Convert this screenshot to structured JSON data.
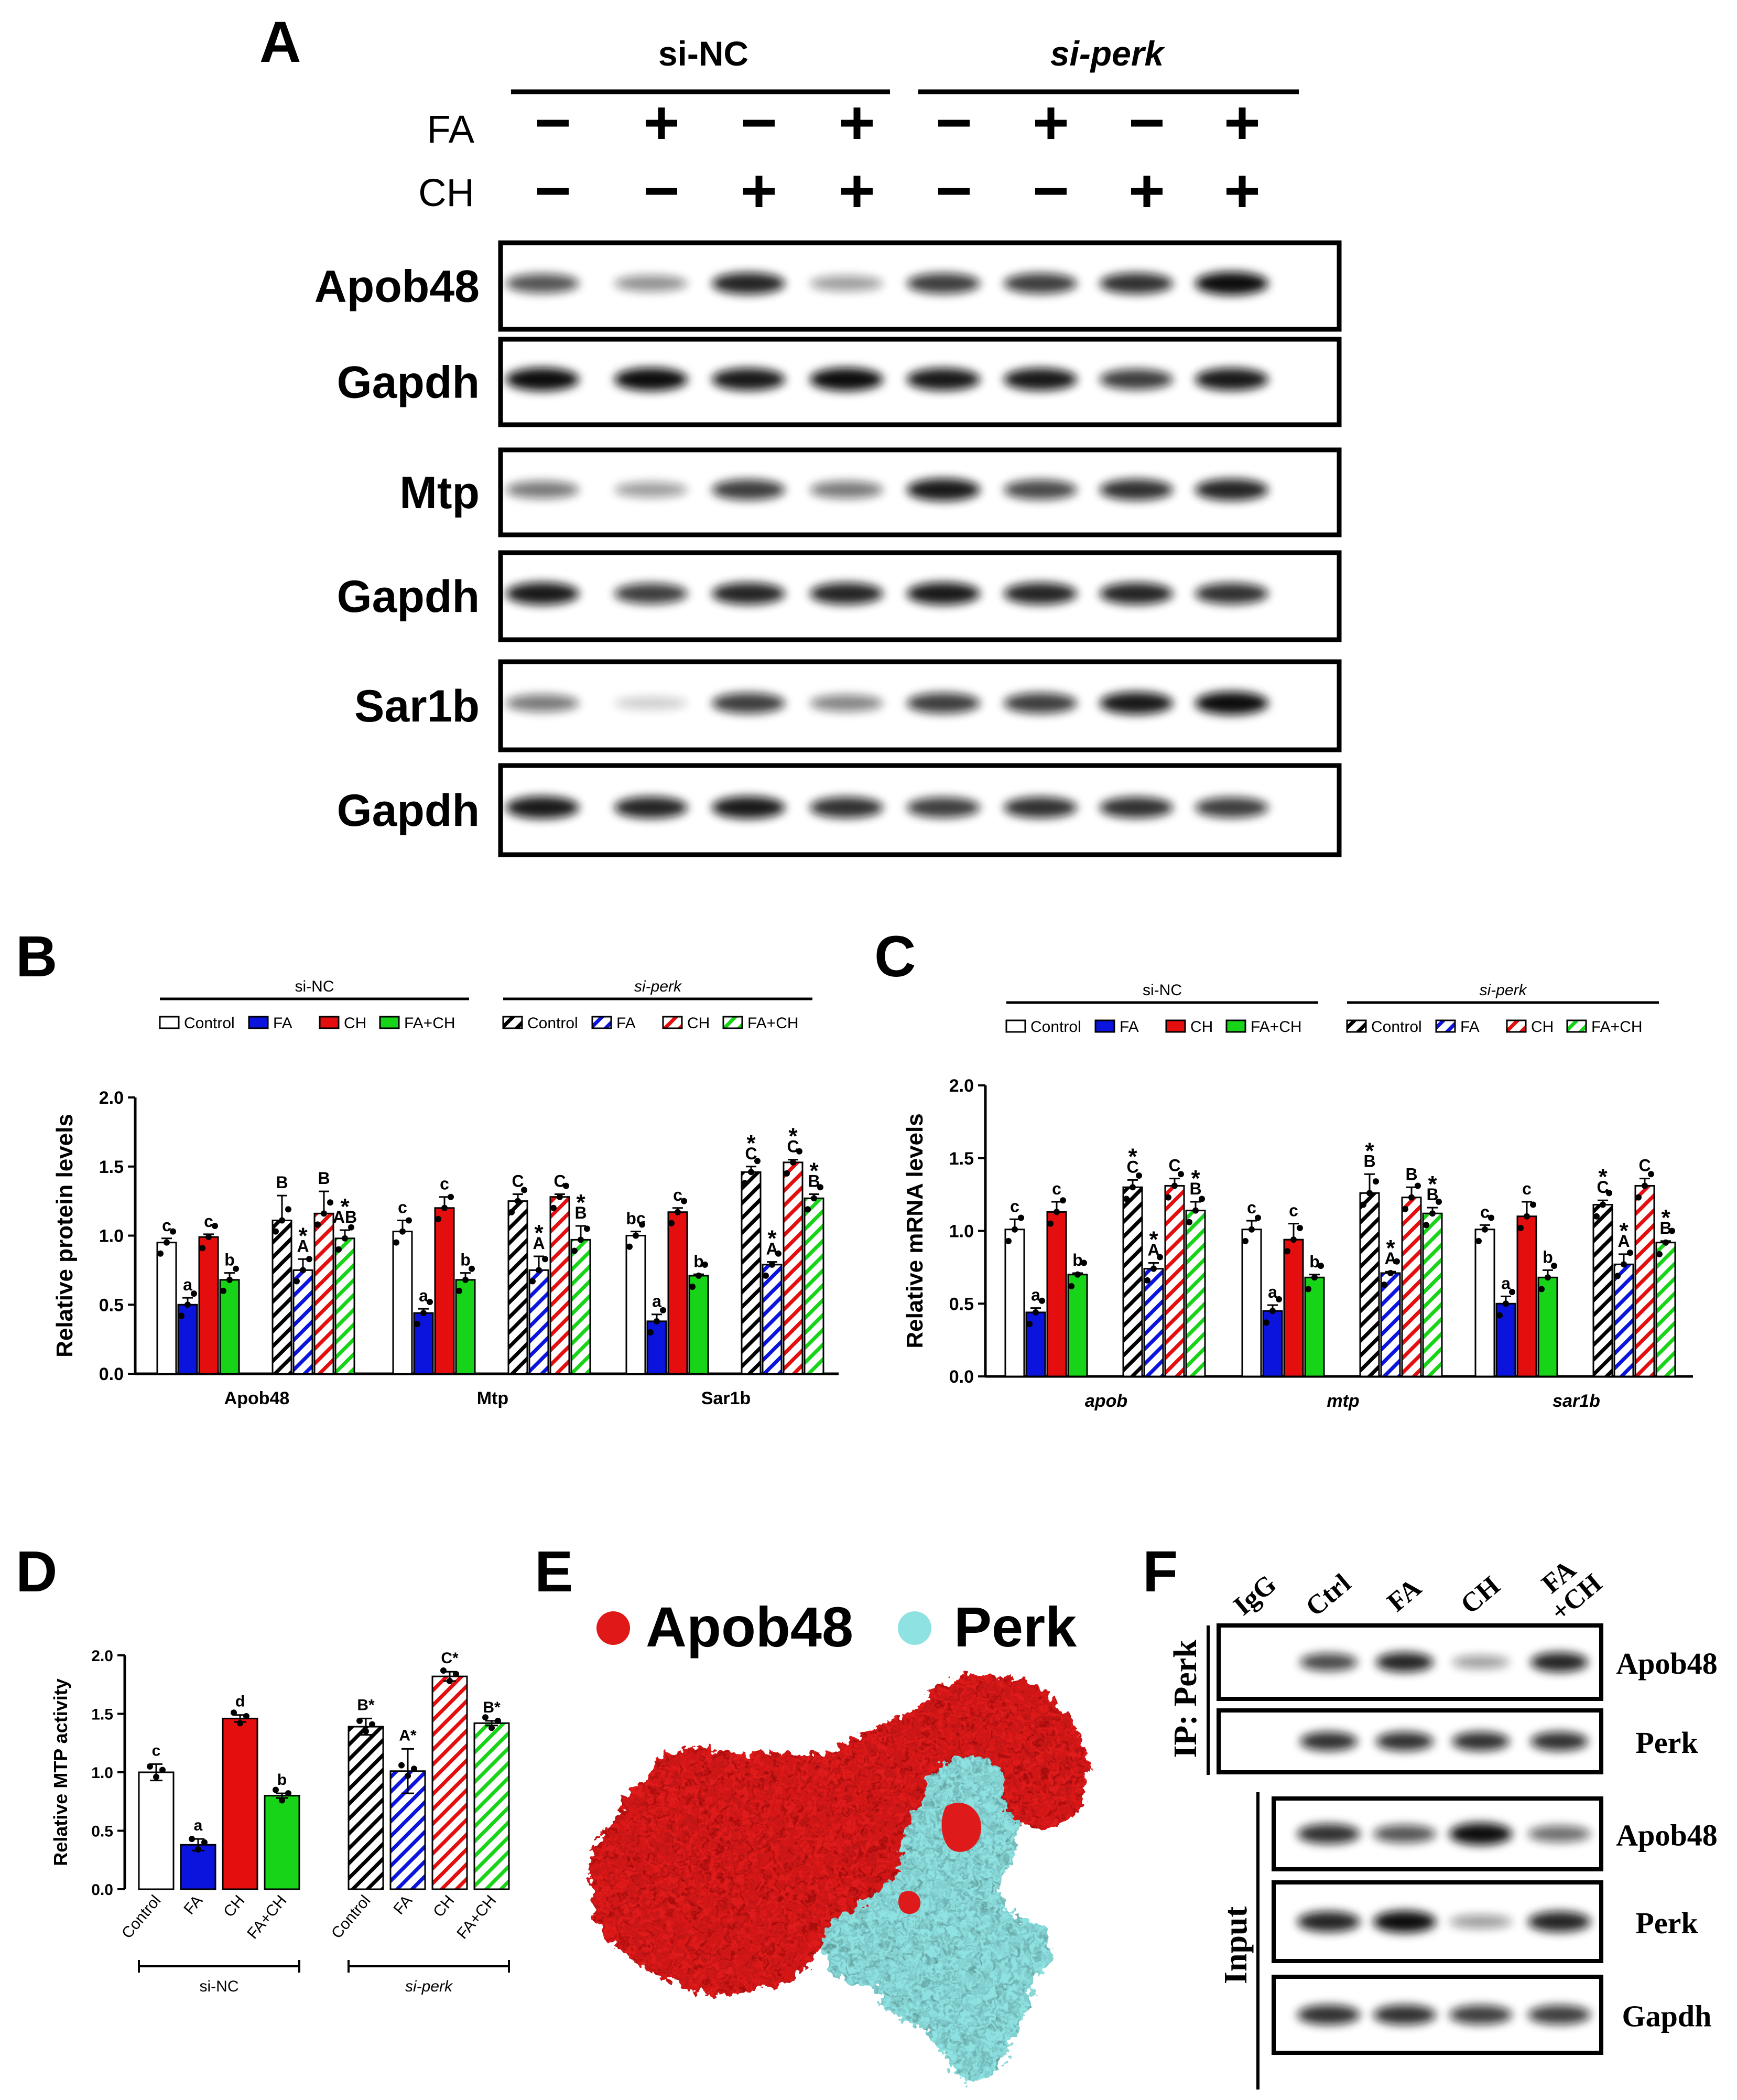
{
  "panel_A": {
    "letter": "A",
    "groups": [
      "si-NC",
      "si-perk"
    ],
    "treatment_rows": [
      {
        "label": "FA",
        "signs": [
          "−",
          "+",
          "−",
          "+",
          "−",
          "+",
          "−",
          "+"
        ]
      },
      {
        "label": "CH",
        "signs": [
          "−",
          "−",
          "+",
          "+",
          "−",
          "−",
          "+",
          "+"
        ]
      }
    ],
    "blots": [
      {
        "label": "Apob48",
        "intensities": [
          0.7,
          0.45,
          0.9,
          0.4,
          0.8,
          0.8,
          0.85,
          1.0
        ]
      },
      {
        "label": "Gapdh",
        "intensities": [
          1.0,
          1.0,
          0.95,
          1.0,
          0.95,
          0.95,
          0.8,
          0.95
        ]
      },
      {
        "label": "Mtp",
        "intensities": [
          0.55,
          0.4,
          0.8,
          0.55,
          0.95,
          0.75,
          0.85,
          0.9
        ]
      },
      {
        "label": "Gapdh",
        "intensities": [
          0.95,
          0.8,
          0.9,
          0.9,
          0.95,
          0.9,
          0.9,
          0.85
        ]
      },
      {
        "label": "Sar1b",
        "intensities": [
          0.55,
          0.2,
          0.8,
          0.5,
          0.8,
          0.8,
          0.95,
          1.0
        ]
      },
      {
        "label": "Gapdh",
        "intensities": [
          0.95,
          0.9,
          0.95,
          0.85,
          0.8,
          0.85,
          0.85,
          0.8
        ]
      }
    ]
  },
  "panel_B": {
    "letter": "B",
    "group_labels": [
      "si-NC",
      "si-perk"
    ],
    "legend": [
      "Control",
      "FA",
      "CH",
      "FA+CH",
      "Control",
      "FA",
      "CH",
      "FA+CH"
    ],
    "ylabel": "Relative protein levels",
    "yticks": [
      "0.0",
      "0.5",
      "1.0",
      "1.5",
      "2.0"
    ]
  },
  "panel_C": {
    "letter": "C",
    "group_labels": [
      "si-NC",
      "si-perk"
    ],
    "legend": [
      "Control",
      "FA",
      "CH",
      "FA+CH",
      "Control",
      "FA",
      "CH",
      "FA+CH"
    ],
    "ylabel": "Relative mRNA levels",
    "yticks": [
      "0.0",
      "0.5",
      "1.0",
      "1.5",
      "2.0"
    ]
  },
  "panel_D": {
    "letter": "D",
    "ylabel": "Relative MTP activity",
    "yticks": [
      "0.0",
      "0.5",
      "1.0",
      "1.5",
      "2.0"
    ],
    "group_labels": [
      "si-NC",
      "si-perk"
    ]
  },
  "panel_E": {
    "letter": "E",
    "legend": [
      {
        "label": "Apob48",
        "color": "#e01818"
      },
      {
        "label": "Perk",
        "color": "#8fe2e2"
      }
    ]
  },
  "panel_F": {
    "letter": "F",
    "lane_labels": [
      "IgG",
      "Ctrl",
      "FA",
      "CH",
      "FA\n+CH"
    ],
    "ip_label": "IP: Perk",
    "input_label": "Input",
    "ip_blots": [
      {
        "label": "Apob48",
        "intensities": [
          0.0,
          0.75,
          0.9,
          0.4,
          0.9
        ]
      },
      {
        "label": "Perk",
        "intensities": [
          0.0,
          0.85,
          0.85,
          0.85,
          0.85
        ]
      }
    ],
    "input_blots": [
      {
        "label": "Apob48",
        "intensities": [
          0.85,
          0.7,
          1.0,
          0.6
        ]
      },
      {
        "label": "Perk",
        "intensities": [
          0.9,
          1.0,
          0.4,
          0.9
        ]
      },
      {
        "label": "Gapdh",
        "intensities": [
          0.85,
          0.85,
          0.8,
          0.8
        ]
      }
    ]
  },
  "chart_data": [
    {
      "type": "bar",
      "panel": "B",
      "title": "",
      "xlabel": "",
      "ylabel": "Relative protein levels",
      "ylim": [
        0,
        2.0
      ],
      "categories": [
        "Apob48",
        "Mtp",
        "Sar1b"
      ],
      "series": [
        {
          "name": "Control",
          "group": "si-NC",
          "color": "#ffffff",
          "hatch": false,
          "values": [
            0.95,
            1.03,
            1.0
          ],
          "errors": [
            0.03,
            0.08,
            0.03
          ],
          "letters": [
            "c",
            "c",
            "bc"
          ]
        },
        {
          "name": "FA",
          "group": "si-NC",
          "color": "#0a14dc",
          "hatch": false,
          "values": [
            0.5,
            0.44,
            0.38
          ],
          "errors": [
            0.05,
            0.03,
            0.05
          ],
          "letters": [
            "a",
            "a",
            "a"
          ]
        },
        {
          "name": "CH",
          "group": "si-NC",
          "color": "#e40e0e",
          "hatch": false,
          "values": [
            0.99,
            1.2,
            1.17
          ],
          "errors": [
            0.02,
            0.08,
            0.03
          ],
          "letters": [
            "c",
            "c",
            "c"
          ]
        },
        {
          "name": "FA+CH",
          "group": "si-NC",
          "color": "#18d418",
          "hatch": false,
          "values": [
            0.68,
            0.68,
            0.71
          ],
          "errors": [
            0.05,
            0.05,
            0.01
          ],
          "letters": [
            "b",
            "b",
            "b"
          ]
        },
        {
          "name": "Control",
          "group": "si-perk",
          "color": "#000000",
          "hatch": true,
          "values": [
            1.11,
            1.25,
            1.46
          ],
          "errors": [
            0.18,
            0.05,
            0.04
          ],
          "letters": [
            "B",
            "C",
            "*C"
          ]
        },
        {
          "name": "FA",
          "group": "si-perk",
          "color": "#0a14dc",
          "hatch": true,
          "values": [
            0.75,
            0.75,
            0.79
          ],
          "errors": [
            0.08,
            0.1,
            0.02
          ],
          "letters": [
            "*A",
            "*A",
            "*A"
          ]
        },
        {
          "name": "CH",
          "group": "si-perk",
          "color": "#e40e0e",
          "hatch": true,
          "values": [
            1.16,
            1.28,
            1.53
          ],
          "errors": [
            0.16,
            0.02,
            0.02
          ],
          "letters": [
            "B",
            "C",
            "*C"
          ]
        },
        {
          "name": "FA+CH",
          "group": "si-perk",
          "color": "#18d418",
          "hatch": true,
          "values": [
            0.98,
            0.97,
            1.27
          ],
          "errors": [
            0.06,
            0.1,
            0.03
          ],
          "letters": [
            "*AB",
            "*B",
            "*B"
          ]
        }
      ]
    },
    {
      "type": "bar",
      "panel": "C",
      "title": "",
      "xlabel": "",
      "ylabel": "Relative mRNA levels",
      "ylim": [
        0,
        2.0
      ],
      "categories": [
        "apob",
        "mtp",
        "sar1b"
      ],
      "series": [
        {
          "name": "Control",
          "group": "si-NC",
          "color": "#ffffff",
          "hatch": false,
          "values": [
            1.01,
            1.01,
            1.01
          ],
          "errors": [
            0.07,
            0.06,
            0.03
          ],
          "letters": [
            "c",
            "c",
            "c"
          ]
        },
        {
          "name": "FA",
          "group": "si-NC",
          "color": "#0a14dc",
          "hatch": false,
          "values": [
            0.44,
            0.45,
            0.5
          ],
          "errors": [
            0.03,
            0.04,
            0.05
          ],
          "letters": [
            "a",
            "a",
            "a"
          ]
        },
        {
          "name": "CH",
          "group": "si-NC",
          "color": "#e40e0e",
          "hatch": false,
          "values": [
            1.13,
            0.94,
            1.1
          ],
          "errors": [
            0.07,
            0.11,
            0.1
          ],
          "letters": [
            "c",
            "c",
            "c"
          ]
        },
        {
          "name": "FA+CH",
          "group": "si-NC",
          "color": "#18d418",
          "hatch": false,
          "values": [
            0.7,
            0.68,
            0.68
          ],
          "errors": [
            0.01,
            0.02,
            0.05
          ],
          "letters": [
            "b",
            "b",
            "b"
          ]
        },
        {
          "name": "Control",
          "group": "si-perk",
          "color": "#000000",
          "hatch": true,
          "values": [
            1.3,
            1.26,
            1.18
          ],
          "errors": [
            0.05,
            0.13,
            0.03
          ],
          "letters": [
            "*C",
            "*B",
            "*C"
          ]
        },
        {
          "name": "FA",
          "group": "si-perk",
          "color": "#0a14dc",
          "hatch": true,
          "values": [
            0.74,
            0.71,
            0.77
          ],
          "errors": [
            0.04,
            0.01,
            0.07
          ],
          "letters": [
            "*A",
            "*A",
            "*A"
          ]
        },
        {
          "name": "CH",
          "group": "si-perk",
          "color": "#e40e0e",
          "hatch": true,
          "values": [
            1.31,
            1.23,
            1.31
          ],
          "errors": [
            0.05,
            0.07,
            0.05
          ],
          "letters": [
            "C",
            "B",
            "C"
          ]
        },
        {
          "name": "FA+CH",
          "group": "si-perk",
          "color": "#18d418",
          "hatch": true,
          "values": [
            1.14,
            1.12,
            0.92
          ],
          "errors": [
            0.06,
            0.04,
            0.01
          ],
          "letters": [
            "*B",
            "*B",
            "*B"
          ]
        }
      ]
    },
    {
      "type": "bar",
      "panel": "D",
      "title": "",
      "xlabel": "",
      "ylabel": "Relative MTP activity",
      "ylim": [
        0,
        2.0
      ],
      "categories": [
        "Control",
        "FA",
        "CH",
        "FA+CH",
        "Control",
        "FA",
        "CH",
        "FA+CH"
      ],
      "groups": [
        "si-NC",
        "si-NC",
        "si-NC",
        "si-NC",
        "si-perk",
        "si-perk",
        "si-perk",
        "si-perk"
      ],
      "values": [
        1.0,
        0.38,
        1.46,
        0.8,
        1.39,
        1.01,
        1.82,
        1.42
      ],
      "errors": [
        0.07,
        0.05,
        0.03,
        0.02,
        0.07,
        0.19,
        0.04,
        0.02
      ],
      "colors": [
        "#ffffff",
        "#0a14dc",
        "#e40e0e",
        "#18d418",
        "#000000",
        "#0a14dc",
        "#e40e0e",
        "#18d418"
      ],
      "hatch": [
        false,
        false,
        false,
        false,
        true,
        true,
        true,
        true
      ],
      "letters": [
        "c",
        "a",
        "d",
        "b",
        "B*",
        "A*",
        "C*",
        "B*"
      ]
    }
  ]
}
